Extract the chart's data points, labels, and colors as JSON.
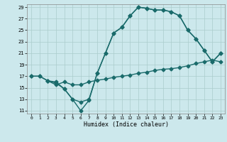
{
  "title": "",
  "xlabel": "Humidex (Indice chaleur)",
  "bg_color": "#cce8ec",
  "grid_color": "#aacccc",
  "line_color": "#1a6b6b",
  "xlim": [
    -0.5,
    23.5
  ],
  "ylim": [
    10.5,
    29.5
  ],
  "xticks": [
    0,
    1,
    2,
    3,
    4,
    5,
    6,
    7,
    8,
    9,
    10,
    11,
    12,
    13,
    14,
    15,
    16,
    17,
    18,
    19,
    20,
    21,
    22,
    23
  ],
  "yticks": [
    11,
    13,
    15,
    17,
    19,
    21,
    23,
    25,
    27,
    29
  ],
  "curve1_x": [
    0,
    1,
    2,
    3,
    4,
    5,
    6,
    7,
    8,
    9,
    10,
    11,
    12,
    13,
    14,
    15,
    16,
    17,
    18,
    19,
    20,
    21,
    22,
    23
  ],
  "curve1_y": [
    17,
    17,
    16.2,
    15.5,
    16,
    15.5,
    15.5,
    16,
    16.3,
    16.5,
    16.8,
    17,
    17.2,
    17.5,
    17.7,
    18,
    18.2,
    18.3,
    18.5,
    18.8,
    19.2,
    19.5,
    19.8,
    19.5
  ],
  "curve2_x": [
    0,
    1,
    2,
    3,
    4,
    5,
    6,
    7,
    8,
    9,
    10,
    11,
    12,
    13,
    14,
    15,
    16,
    17,
    18,
    19,
    20,
    21,
    22,
    23
  ],
  "curve2_y": [
    17,
    17,
    16.2,
    16,
    14.8,
    13,
    12.5,
    13,
    17.5,
    21,
    24.5,
    25.5,
    27.5,
    29,
    28.8,
    28.5,
    28.5,
    28.2,
    27.5,
    25,
    23.5,
    21.5,
    19.5,
    21
  ],
  "curve3_x": [
    2,
    3,
    4,
    5,
    6,
    7,
    8,
    9,
    10,
    11,
    12,
    13,
    14,
    15,
    16,
    17,
    18,
    19,
    20,
    21,
    22,
    23
  ],
  "curve3_y": [
    16.2,
    15.8,
    14.8,
    13,
    11,
    12.8,
    17.5,
    21,
    24.5,
    25.5,
    27.5,
    29,
    28.8,
    28.5,
    28.5,
    28.2,
    27.5,
    25,
    23.5,
    21.5,
    19.5,
    21
  ],
  "marker": "D",
  "markersize": 2.5,
  "linewidth": 1.0
}
